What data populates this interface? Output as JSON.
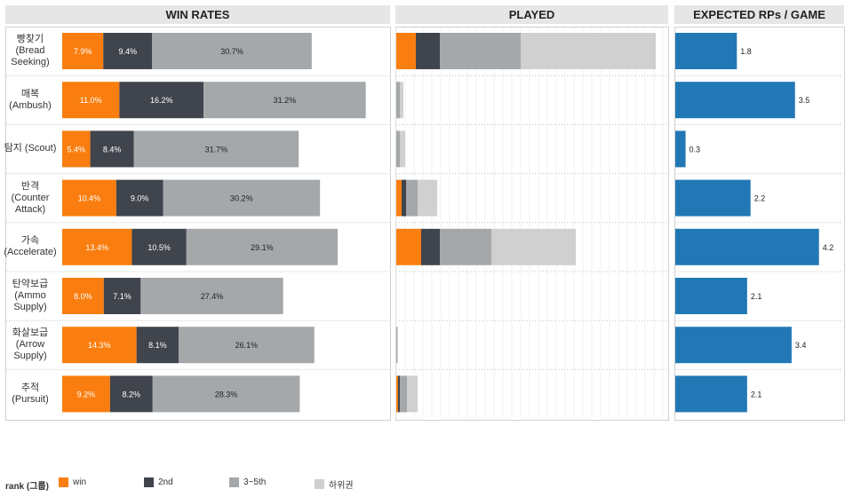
{
  "panels": {
    "win_rates": "WIN RATES",
    "played": "PLAYED",
    "expected": "EXPECTED RPs / GAME"
  },
  "legend": {
    "title": "rank (그룹)",
    "items": [
      {
        "label": "win",
        "color": "#f97e0f"
      },
      {
        "label": "2nd",
        "color": "#40444d"
      },
      {
        "label": "3~5th",
        "color": "#a4a8aa"
      },
      {
        "label": "하위권",
        "color": "#d0d0d0"
      }
    ]
  },
  "colors": {
    "win": "#f97e0f",
    "second": "#40444d",
    "third_fifth": "#a4a8aa",
    "lower": "#d0d0d0",
    "rp": "#2278b5"
  },
  "chart_data": [
    {
      "type": "bar",
      "orientation": "horizontal",
      "stacked": true,
      "title": "WIN RATES",
      "categories": [
        "빵찾기\n(Bread\nSeeking)",
        "매복\n(Ambush)",
        "탐지 (Scout)",
        "반격\n(Counter\nAttack)",
        "가속\n(Accelerate)",
        "탄약보급\n(Ammo\nSupply)",
        "화살보급\n(Arrow\nSupply)",
        "추적\n(Pursuit)"
      ],
      "series": [
        {
          "name": "win",
          "values": [
            7.9,
            11.0,
            5.4,
            10.4,
            13.4,
            8.0,
            14.3,
            9.2
          ]
        },
        {
          "name": "2nd",
          "values": [
            9.4,
            16.2,
            8.4,
            9.0,
            10.5,
            7.1,
            8.1,
            8.2
          ]
        },
        {
          "name": "3~5th",
          "values": [
            30.7,
            31.2,
            31.7,
            30.2,
            29.1,
            27.4,
            26.1,
            28.3
          ]
        }
      ],
      "data_labels": [
        [
          "7.9%",
          "9.4%",
          "30.7%"
        ],
        [
          "11.0%",
          "16.2%",
          "31.2%"
        ],
        [
          "5.4%",
          "8.4%",
          "31.7%"
        ],
        [
          "10.4%",
          "9.0%",
          "30.2%"
        ],
        [
          "13.4%",
          "10.5%",
          "29.1%"
        ],
        [
          "8.0%",
          "7.1%",
          "27.4%"
        ],
        [
          "14.3%",
          "8.1%",
          "26.1%"
        ],
        [
          "9.2%",
          "8.2%",
          "28.3%"
        ]
      ],
      "xlim": [
        0,
        60
      ],
      "grid": false
    },
    {
      "type": "bar",
      "orientation": "horizontal",
      "stacked": true,
      "title": "PLAYED",
      "series": [
        {
          "name": "win",
          "values": [
            22,
            0,
            0,
            6,
            28,
            0,
            0,
            2
          ]
        },
        {
          "name": "2nd",
          "values": [
            27,
            0,
            0,
            5,
            21,
            0,
            0,
            2
          ]
        },
        {
          "name": "3~5th",
          "values": [
            91,
            4,
            4,
            13,
            58,
            0,
            1,
            8
          ]
        },
        {
          "name": "하위권",
          "values": [
            152,
            4,
            6,
            22,
            95,
            0,
            1,
            12
          ]
        }
      ],
      "xlim": [
        0,
        300
      ],
      "grid": true
    },
    {
      "type": "bar",
      "orientation": "horizontal",
      "title": "EXPECTED RPs / GAME",
      "values": [
        1.8,
        3.5,
        0.3,
        2.2,
        4.2,
        2.1,
        3.4,
        2.1
      ],
      "value_labels": [
        "1.8",
        "3.5",
        "0.3",
        "2.2",
        "4.2",
        "2.1",
        "3.4",
        "2.1"
      ],
      "xlim": [
        0,
        4.6
      ],
      "grid": false
    }
  ]
}
